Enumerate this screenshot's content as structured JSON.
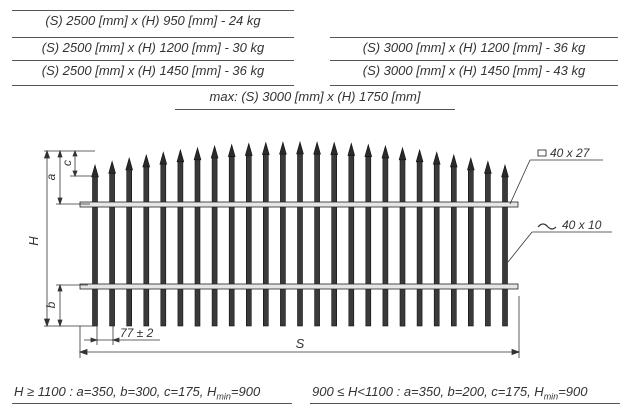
{
  "specs": {
    "left": [
      "(S) 2500 [mm] x (H) 950 [mm]   -  24 kg",
      "(S) 2500 [mm] x (H) 1200 [mm]  -  30 kg",
      "(S) 2500 [mm] x (H) 1450 [mm]  -  36 kg"
    ],
    "right": [
      "(S) 3000 [mm] x (H) 1200 [mm]  -  36 kg",
      "(S) 3000 [mm] x (H) 1450 [mm]  -  43 kg"
    ],
    "max": "max: (S) 3000 [mm] x (H) 1750 [mm]"
  },
  "drawing": {
    "rail_profile_label": "40 x 27",
    "picket_profile_label": "40 x 10",
    "picket_spacing_label": "77 ± 2",
    "dim_H": "H",
    "dim_a": "a",
    "dim_b": "b",
    "dim_c": "c",
    "dim_S": "S"
  },
  "notes": {
    "left_prefix": "H ≥ 1100 : a=350, b=300, c=175, H",
    "left_sub": "min",
    "left_suffix": "=900",
    "right_prefix": "900 ≤ H<1100 : a=350, b=200, c=175, H",
    "right_sub": "min",
    "right_suffix": "=900"
  }
}
